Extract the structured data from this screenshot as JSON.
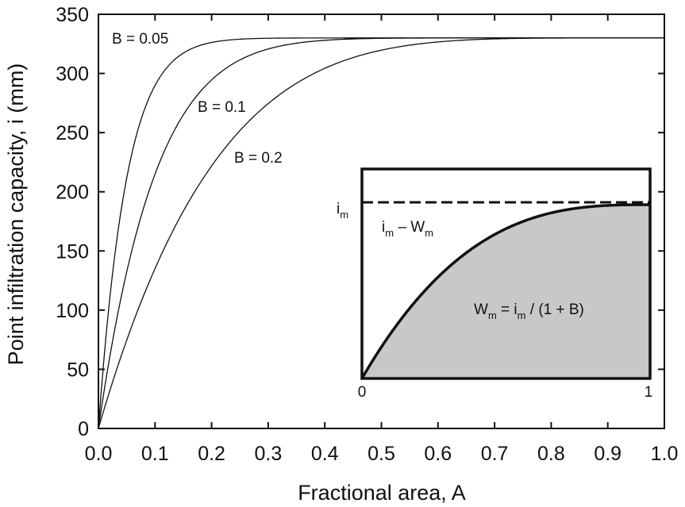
{
  "chart_data": {
    "type": "line",
    "title": "",
    "xlabel": "Fractional area, A",
    "ylabel": "Point infiltration capacity, i (mm)",
    "xlim": [
      0.0,
      1.0
    ],
    "ylim": [
      0,
      350
    ],
    "x_ticks": [
      "0.0",
      "0.1",
      "0.2",
      "0.3",
      "0.4",
      "0.5",
      "0.6",
      "0.7",
      "0.8",
      "0.9",
      "1.0"
    ],
    "y_ticks": [
      "0",
      "50",
      "100",
      "150",
      "200",
      "250",
      "300",
      "350"
    ],
    "grid": false,
    "max_value": 330,
    "series": [
      {
        "name": "B = 0.05",
        "b": 0.05
      },
      {
        "name": "B = 0.1",
        "b": 0.1
      },
      {
        "name": "B = 0.2",
        "b": 0.2
      }
    ],
    "inset": {
      "x_ticks": [
        "0",
        "1"
      ],
      "top_label_main": "i",
      "top_label_sub": "m",
      "gap_label": {
        "a": "i",
        "a_sub": "m",
        "op": " – W",
        "b_sub": "m"
      },
      "formula": {
        "w": "W",
        "w_sub": "m",
        "eq": " = i",
        "i_sub": "m",
        "rest": " / (1 + B)"
      },
      "shape_b": 0.35,
      "fill_color": "#c8c8c8"
    }
  }
}
